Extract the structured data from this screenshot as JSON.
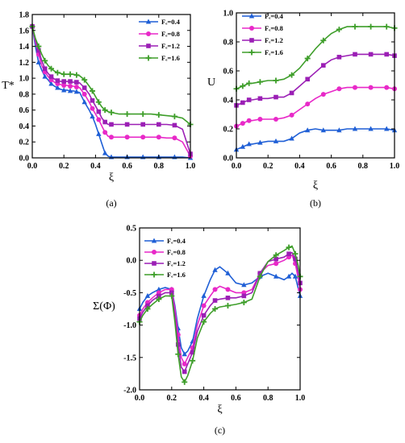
{
  "chart_data": [
    {
      "type": "line",
      "panel_label": "(a)",
      "xlabel": "ξ",
      "ylabel": "T*",
      "xlim": [
        0,
        1
      ],
      "ylim": [
        0,
        1.8
      ],
      "xticks": [
        "0.0",
        "0.2",
        "0.4",
        "0.6",
        "0.8",
        "1.0"
      ],
      "yticks": [
        "0.0",
        "0.2",
        "0.4",
        "0.6",
        "0.8",
        "1.0",
        "1.2",
        "1.4",
        "1.6",
        "1.8"
      ],
      "legend_position": "top-right",
      "series": [
        {
          "name": "Fₑ=0.4",
          "color": "#1f5fd6",
          "marker": "triangle",
          "x": [
            0,
            0.02,
            0.04,
            0.06,
            0.08,
            0.1,
            0.12,
            0.14,
            0.16,
            0.18,
            0.2,
            0.22,
            0.24,
            0.26,
            0.28,
            0.3,
            0.33,
            0.36,
            0.38,
            0.4,
            0.42,
            0.44,
            0.46,
            0.48,
            0.5,
            0.55,
            0.6,
            0.65,
            0.7,
            0.75,
            0.8,
            0.85,
            0.9,
            0.95,
            1.0
          ],
          "values": [
            1.65,
            1.4,
            1.2,
            1.1,
            1.02,
            0.98,
            0.93,
            0.9,
            0.88,
            0.86,
            0.85,
            0.85,
            0.84,
            0.84,
            0.83,
            0.82,
            0.7,
            0.6,
            0.52,
            0.42,
            0.3,
            0.18,
            0.06,
            0.02,
            0.01,
            0.01,
            0.01,
            0.01,
            0.01,
            0.01,
            0.01,
            0.01,
            0.01,
            0.01,
            0.0
          ]
        },
        {
          "name": "Fₑ=0.8",
          "color": "#e829c8",
          "marker": "circle",
          "x": [
            0,
            0.02,
            0.04,
            0.06,
            0.08,
            0.1,
            0.12,
            0.14,
            0.16,
            0.18,
            0.2,
            0.22,
            0.24,
            0.26,
            0.28,
            0.3,
            0.33,
            0.36,
            0.38,
            0.4,
            0.42,
            0.44,
            0.46,
            0.48,
            0.5,
            0.55,
            0.6,
            0.65,
            0.7,
            0.75,
            0.8,
            0.85,
            0.9,
            0.95,
            1.0
          ],
          "values": [
            1.65,
            1.45,
            1.3,
            1.16,
            1.08,
            1.02,
            0.98,
            0.95,
            0.93,
            0.92,
            0.91,
            0.91,
            0.9,
            0.9,
            0.89,
            0.88,
            0.8,
            0.7,
            0.62,
            0.55,
            0.48,
            0.4,
            0.32,
            0.27,
            0.26,
            0.26,
            0.26,
            0.26,
            0.26,
            0.26,
            0.26,
            0.25,
            0.25,
            0.2,
            0.02
          ]
        },
        {
          "name": "Fₑ=1.2",
          "color": "#9b1fb5",
          "marker": "square",
          "x": [
            0,
            0.02,
            0.04,
            0.06,
            0.08,
            0.1,
            0.12,
            0.14,
            0.16,
            0.18,
            0.2,
            0.22,
            0.24,
            0.26,
            0.28,
            0.3,
            0.33,
            0.36,
            0.38,
            0.4,
            0.42,
            0.44,
            0.46,
            0.48,
            0.5,
            0.55,
            0.6,
            0.65,
            0.7,
            0.75,
            0.8,
            0.85,
            0.9,
            0.95,
            1.0
          ],
          "values": [
            1.65,
            1.48,
            1.35,
            1.22,
            1.12,
            1.06,
            1.02,
            0.99,
            0.97,
            0.96,
            0.96,
            0.96,
            0.96,
            0.95,
            0.95,
            0.94,
            0.88,
            0.8,
            0.72,
            0.65,
            0.58,
            0.5,
            0.45,
            0.42,
            0.42,
            0.42,
            0.42,
            0.42,
            0.42,
            0.42,
            0.42,
            0.42,
            0.41,
            0.36,
            0.05
          ]
        },
        {
          "name": "Fₑ=1.6",
          "color": "#3e9e2a",
          "marker": "plus",
          "x": [
            0,
            0.02,
            0.04,
            0.06,
            0.08,
            0.1,
            0.12,
            0.14,
            0.16,
            0.18,
            0.2,
            0.22,
            0.24,
            0.26,
            0.28,
            0.3,
            0.33,
            0.36,
            0.38,
            0.4,
            0.42,
            0.44,
            0.46,
            0.48,
            0.5,
            0.55,
            0.6,
            0.65,
            0.7,
            0.75,
            0.8,
            0.85,
            0.9,
            0.95,
            1.0
          ],
          "values": [
            1.65,
            1.5,
            1.4,
            1.3,
            1.22,
            1.16,
            1.12,
            1.09,
            1.07,
            1.06,
            1.05,
            1.05,
            1.05,
            1.05,
            1.04,
            1.03,
            0.98,
            0.9,
            0.84,
            0.77,
            0.7,
            0.64,
            0.6,
            0.58,
            0.57,
            0.55,
            0.55,
            0.55,
            0.55,
            0.55,
            0.54,
            0.53,
            0.52,
            0.5,
            0.42
          ]
        }
      ]
    },
    {
      "type": "line",
      "panel_label": "(b)",
      "xlabel": "ξ",
      "ylabel": "U",
      "xlim": [
        0,
        1
      ],
      "ylim": [
        0,
        1.05
      ],
      "xticks": [
        "0.0",
        "0.2",
        "0.4",
        "0.6",
        "0.8",
        "1.0"
      ],
      "yticks": [
        "0.0",
        "0.2",
        "0.4",
        "0.6",
        "0.8",
        "1.0"
      ],
      "legend_position": "top-left",
      "series": [
        {
          "name": "Fₑ=0.4",
          "color": "#1f5fd6",
          "marker": "triangle",
          "x": [
            0,
            0.02,
            0.04,
            0.06,
            0.08,
            0.1,
            0.15,
            0.2,
            0.25,
            0.3,
            0.35,
            0.4,
            0.45,
            0.5,
            0.55,
            0.6,
            0.65,
            0.7,
            0.75,
            0.8,
            0.85,
            0.9,
            0.95,
            1.0
          ],
          "values": [
            0.06,
            0.07,
            0.08,
            0.09,
            0.1,
            0.1,
            0.11,
            0.12,
            0.12,
            0.12,
            0.14,
            0.18,
            0.2,
            0.21,
            0.2,
            0.2,
            0.2,
            0.21,
            0.21,
            0.21,
            0.21,
            0.21,
            0.21,
            0.2
          ]
        },
        {
          "name": "Fₑ=0.8",
          "color": "#e829c8",
          "marker": "circle",
          "x": [
            0,
            0.02,
            0.04,
            0.06,
            0.08,
            0.1,
            0.15,
            0.2,
            0.25,
            0.3,
            0.35,
            0.4,
            0.45,
            0.5,
            0.55,
            0.6,
            0.65,
            0.7,
            0.75,
            0.8,
            0.85,
            0.9,
            0.95,
            1.0
          ],
          "values": [
            0.23,
            0.24,
            0.25,
            0.26,
            0.27,
            0.27,
            0.28,
            0.28,
            0.28,
            0.29,
            0.31,
            0.35,
            0.39,
            0.43,
            0.46,
            0.48,
            0.5,
            0.51,
            0.51,
            0.51,
            0.51,
            0.51,
            0.51,
            0.5
          ]
        },
        {
          "name": "Fₑ=1.2",
          "color": "#9b1fb5",
          "marker": "square",
          "x": [
            0,
            0.02,
            0.04,
            0.06,
            0.08,
            0.1,
            0.15,
            0.2,
            0.25,
            0.3,
            0.35,
            0.4,
            0.45,
            0.5,
            0.55,
            0.6,
            0.65,
            0.7,
            0.75,
            0.8,
            0.85,
            0.9,
            0.95,
            1.0
          ],
          "values": [
            0.38,
            0.39,
            0.4,
            0.41,
            0.42,
            0.42,
            0.43,
            0.43,
            0.44,
            0.44,
            0.47,
            0.52,
            0.57,
            0.62,
            0.67,
            0.71,
            0.73,
            0.74,
            0.75,
            0.75,
            0.75,
            0.75,
            0.75,
            0.74
          ]
        },
        {
          "name": "Fₑ=1.6",
          "color": "#3e9e2a",
          "marker": "plus",
          "x": [
            0,
            0.02,
            0.04,
            0.06,
            0.08,
            0.1,
            0.15,
            0.2,
            0.25,
            0.3,
            0.35,
            0.4,
            0.45,
            0.5,
            0.55,
            0.6,
            0.65,
            0.7,
            0.75,
            0.8,
            0.85,
            0.9,
            0.95,
            1.0
          ],
          "values": [
            0.5,
            0.51,
            0.52,
            0.53,
            0.54,
            0.54,
            0.55,
            0.56,
            0.56,
            0.57,
            0.6,
            0.65,
            0.72,
            0.79,
            0.85,
            0.9,
            0.93,
            0.95,
            0.95,
            0.95,
            0.95,
            0.95,
            0.95,
            0.94
          ]
        }
      ]
    },
    {
      "type": "line",
      "panel_label": "(c)",
      "xlabel": "ξ",
      "ylabel": "Σ(Φ)",
      "xlim": [
        0,
        1
      ],
      "ylim": [
        -2.0,
        0.5
      ],
      "xticks": [
        "0.0",
        "0.2",
        "0.4",
        "0.6",
        "0.8",
        "1.0"
      ],
      "yticks": [
        "-2.0",
        "-1.5",
        "-1.0",
        "-0.5",
        "0.0",
        "0.5"
      ],
      "legend_position": "top-left",
      "series": [
        {
          "name": "Fₑ=0.4",
          "color": "#1f5fd6",
          "marker": "triangle",
          "x": [
            0,
            0.02,
            0.05,
            0.08,
            0.12,
            0.16,
            0.2,
            0.22,
            0.24,
            0.26,
            0.28,
            0.3,
            0.33,
            0.36,
            0.4,
            0.44,
            0.47,
            0.5,
            0.55,
            0.6,
            0.65,
            0.7,
            0.75,
            0.8,
            0.85,
            0.9,
            0.93,
            0.95,
            0.97,
            0.99,
            1.0
          ],
          "values": [
            -0.75,
            -0.65,
            -0.55,
            -0.5,
            -0.45,
            -0.42,
            -0.45,
            -0.7,
            -1.05,
            -1.35,
            -1.45,
            -1.4,
            -1.25,
            -0.9,
            -0.55,
            -0.3,
            -0.15,
            -0.1,
            -0.2,
            -0.35,
            -0.38,
            -0.35,
            -0.25,
            -0.2,
            -0.25,
            -0.3,
            -0.25,
            -0.2,
            -0.25,
            -0.45,
            -0.55
          ]
        },
        {
          "name": "Fₑ=0.8",
          "color": "#e829c8",
          "marker": "circle",
          "x": [
            0,
            0.02,
            0.05,
            0.08,
            0.12,
            0.16,
            0.2,
            0.22,
            0.24,
            0.26,
            0.28,
            0.3,
            0.33,
            0.36,
            0.4,
            0.44,
            0.47,
            0.5,
            0.55,
            0.6,
            0.65,
            0.7,
            0.75,
            0.8,
            0.85,
            0.9,
            0.93,
            0.95,
            0.97,
            0.99,
            1.0
          ],
          "values": [
            -0.85,
            -0.75,
            -0.65,
            -0.58,
            -0.5,
            -0.45,
            -0.45,
            -0.75,
            -1.15,
            -1.5,
            -1.6,
            -1.5,
            -1.35,
            -1.0,
            -0.7,
            -0.55,
            -0.45,
            -0.4,
            -0.45,
            -0.5,
            -0.5,
            -0.45,
            -0.2,
            -0.08,
            -0.05,
            0.0,
            0.05,
            0.08,
            -0.05,
            -0.3,
            -0.45
          ]
        },
        {
          "name": "Fₑ=1.2",
          "color": "#9b1fb5",
          "marker": "square",
          "x": [
            0,
            0.02,
            0.05,
            0.08,
            0.12,
            0.16,
            0.2,
            0.22,
            0.24,
            0.26,
            0.28,
            0.3,
            0.33,
            0.36,
            0.4,
            0.44,
            0.47,
            0.5,
            0.55,
            0.6,
            0.65,
            0.7,
            0.75,
            0.8,
            0.85,
            0.9,
            0.93,
            0.95,
            0.97,
            0.99,
            1.0
          ],
          "values": [
            -0.9,
            -0.8,
            -0.7,
            -0.62,
            -0.55,
            -0.5,
            -0.5,
            -0.85,
            -1.3,
            -1.65,
            -1.72,
            -1.6,
            -1.42,
            -1.1,
            -0.85,
            -0.7,
            -0.62,
            -0.6,
            -0.58,
            -0.58,
            -0.55,
            -0.5,
            -0.2,
            -0.02,
            0.02,
            0.05,
            0.1,
            0.12,
            0.02,
            -0.2,
            -0.35
          ]
        },
        {
          "name": "Fₑ=1.6",
          "color": "#3e9e2a",
          "marker": "plus",
          "x": [
            0,
            0.02,
            0.05,
            0.08,
            0.12,
            0.16,
            0.2,
            0.22,
            0.24,
            0.26,
            0.28,
            0.3,
            0.33,
            0.36,
            0.4,
            0.44,
            0.47,
            0.5,
            0.55,
            0.6,
            0.65,
            0.7,
            0.75,
            0.8,
            0.85,
            0.9,
            0.93,
            0.95,
            0.97,
            0.99,
            1.0
          ],
          "values": [
            -0.95,
            -0.85,
            -0.75,
            -0.68,
            -0.6,
            -0.55,
            -0.55,
            -0.95,
            -1.45,
            -1.8,
            -1.88,
            -1.78,
            -1.55,
            -1.2,
            -0.95,
            -0.82,
            -0.75,
            -0.72,
            -0.7,
            -0.68,
            -0.65,
            -0.6,
            -0.25,
            -0.02,
            0.08,
            0.15,
            0.2,
            0.22,
            0.1,
            -0.1,
            -0.25
          ]
        }
      ]
    }
  ]
}
